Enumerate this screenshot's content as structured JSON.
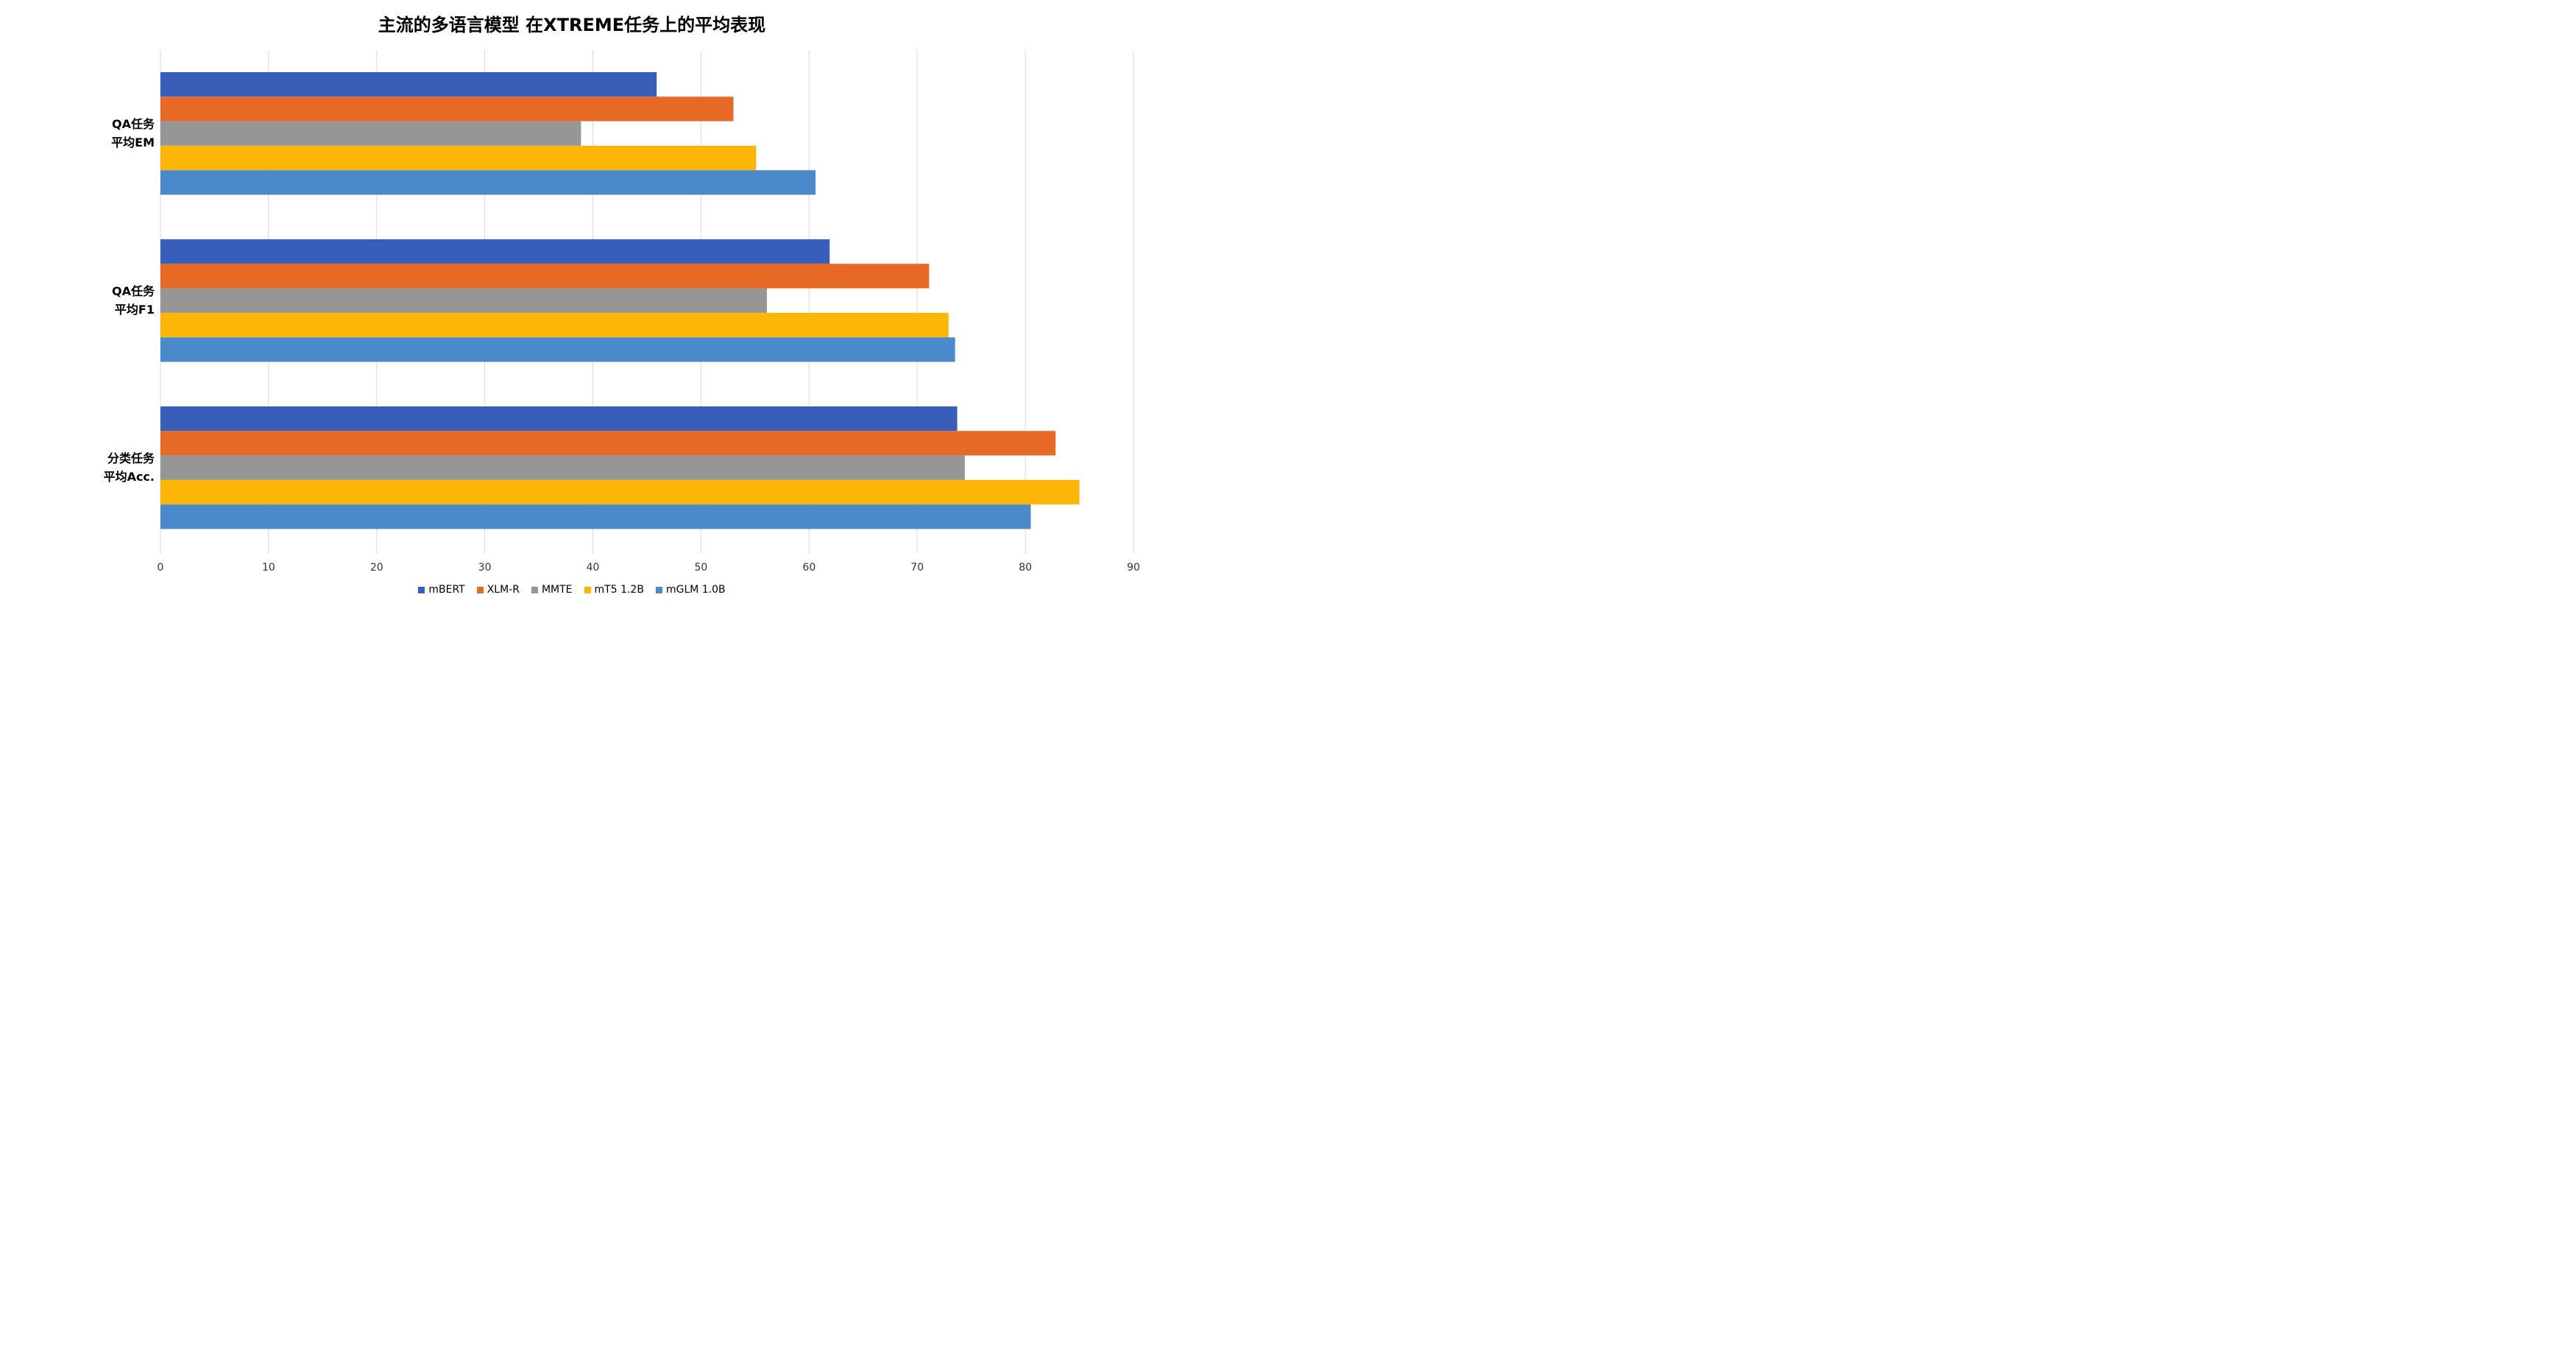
{
  "chart_data": {
    "type": "bar",
    "orientation": "horizontal",
    "title": "主流的多语言模型 在XTREME任务上的平均表现",
    "categories": [
      [
        "QA任务",
        "平均EM"
      ],
      [
        "QA任务",
        "平均F1"
      ],
      [
        "分类任务",
        "平均Acc."
      ]
    ],
    "series": [
      {
        "name": "mBERT",
        "color": "#375EB8",
        "values": [
          45.9,
          61.9,
          73.7
        ]
      },
      {
        "name": "XLM-R",
        "color": "#E66A26",
        "values": [
          53.0,
          71.1,
          82.8
        ]
      },
      {
        "name": "MMTE",
        "color": "#969696",
        "values": [
          38.9,
          56.1,
          74.4
        ]
      },
      {
        "name": "mT5 1.2B",
        "color": "#FDB607",
        "values": [
          55.1,
          72.9,
          85.0
        ]
      },
      {
        "name": "mGLM 1.0B",
        "color": "#4A8ACB",
        "values": [
          60.6,
          73.5,
          80.5
        ]
      }
    ],
    "xlim": [
      0,
      90
    ],
    "xticks": [
      "0",
      "10",
      "20",
      "30",
      "40",
      "50",
      "60",
      "70",
      "80",
      "90"
    ],
    "grid": true,
    "legend_position": "bottom"
  }
}
